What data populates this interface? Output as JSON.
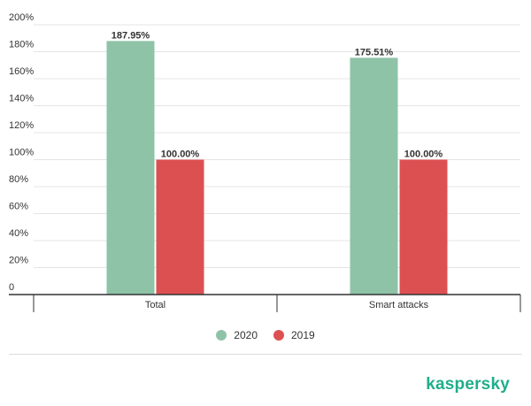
{
  "brand": {
    "logo_text": "kaspersky",
    "color": "#1fae8a"
  },
  "chart_data": {
    "type": "bar",
    "categories": [
      "Total",
      "Smart attacks"
    ],
    "series": [
      {
        "name": "2020",
        "values": [
          187.95,
          175.51
        ],
        "labels": [
          "187.95%",
          "175.51%"
        ],
        "color": "#8ec3a8"
      },
      {
        "name": "2019",
        "values": [
          100.0,
          100.0
        ],
        "labels": [
          "100.00%",
          "100.00%"
        ],
        "color": "#dd5052"
      }
    ],
    "yticks": [
      0,
      20,
      40,
      60,
      80,
      100,
      120,
      140,
      160,
      180,
      200
    ],
    "ytick_labels": [
      "0",
      "20%",
      "40%",
      "60%",
      "80%",
      "100%",
      "120%",
      "140%",
      "160%",
      "180%",
      "200%"
    ],
    "ylim": [
      0,
      200
    ],
    "grid": true,
    "legend_position": "bottom"
  }
}
